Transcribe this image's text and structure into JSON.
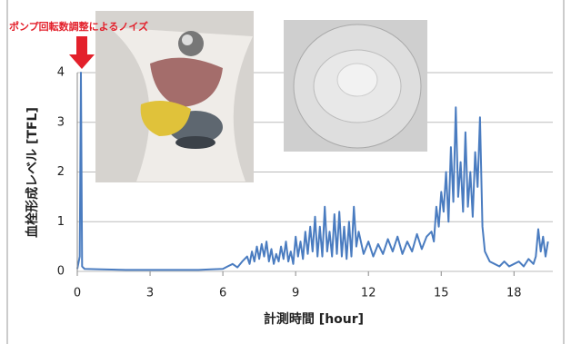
{
  "chart_data": {
    "type": "line",
    "annotation": "ポンプ回転数調整によるノイズ",
    "xlabel": "計測時間 [hour]",
    "ylabel": "血栓形成レベル [TFL]",
    "xlim": [
      0,
      19.6
    ],
    "xticks": [
      0,
      3,
      6,
      9,
      12,
      15,
      18
    ],
    "ylim": [
      0,
      4
    ],
    "yticks": [
      0,
      1,
      2,
      3,
      4
    ],
    "grid": true,
    "series": [
      {
        "color": "#4a7cc0",
        "x": [
          0,
          0.1,
          0.15,
          0.2,
          0.3,
          1,
          2,
          3,
          4,
          5,
          5.5,
          6,
          6.2,
          6.4,
          6.6,
          6.8,
          7.0,
          7.1,
          7.2,
          7.3,
          7.4,
          7.5,
          7.6,
          7.7,
          7.8,
          7.9,
          8.0,
          8.1,
          8.2,
          8.3,
          8.4,
          8.5,
          8.6,
          8.7,
          8.8,
          8.9,
          9.0,
          9.1,
          9.2,
          9.3,
          9.4,
          9.5,
          9.6,
          9.7,
          9.8,
          9.9,
          10.0,
          10.1,
          10.2,
          10.3,
          10.4,
          10.5,
          10.6,
          10.7,
          10.8,
          10.9,
          11.0,
          11.1,
          11.2,
          11.3,
          11.4,
          11.5,
          11.6,
          11.8,
          12,
          12.2,
          12.4,
          12.6,
          12.8,
          13,
          13.2,
          13.4,
          13.6,
          13.8,
          14,
          14.2,
          14.4,
          14.6,
          14.7,
          14.8,
          14.9,
          15.0,
          15.1,
          15.2,
          15.3,
          15.4,
          15.5,
          15.6,
          15.7,
          15.8,
          15.9,
          16.0,
          16.1,
          16.2,
          16.3,
          16.4,
          16.5,
          16.6,
          16.7,
          16.8,
          17,
          17.2,
          17.4,
          17.6,
          17.8,
          18,
          18.2,
          18.4,
          18.6,
          18.8,
          18.9,
          19,
          19.1,
          19.2,
          19.3,
          19.4
        ],
        "values": [
          0.05,
          0.3,
          4.0,
          0.1,
          0.05,
          0.04,
          0.03,
          0.03,
          0.03,
          0.03,
          0.04,
          0.05,
          0.1,
          0.15,
          0.08,
          0.2,
          0.3,
          0.15,
          0.4,
          0.2,
          0.5,
          0.25,
          0.55,
          0.3,
          0.6,
          0.2,
          0.45,
          0.15,
          0.35,
          0.2,
          0.5,
          0.25,
          0.6,
          0.2,
          0.4,
          0.15,
          0.7,
          0.3,
          0.6,
          0.25,
          0.8,
          0.35,
          0.9,
          0.4,
          1.1,
          0.3,
          0.9,
          0.3,
          1.3,
          0.4,
          0.8,
          0.3,
          1.15,
          0.35,
          1.2,
          0.3,
          0.9,
          0.25,
          1.0,
          0.3,
          1.3,
          0.5,
          0.8,
          0.35,
          0.6,
          0.3,
          0.55,
          0.35,
          0.65,
          0.4,
          0.7,
          0.35,
          0.6,
          0.4,
          0.75,
          0.45,
          0.7,
          0.8,
          0.6,
          1.3,
          0.9,
          1.6,
          1.2,
          2.0,
          1.0,
          2.5,
          1.4,
          3.3,
          1.5,
          2.2,
          1.2,
          2.8,
          1.3,
          2.0,
          1.1,
          2.4,
          1.7,
          3.1,
          0.9,
          0.4,
          0.2,
          0.15,
          0.1,
          0.2,
          0.1,
          0.15,
          0.2,
          0.1,
          0.25,
          0.15,
          0.3,
          0.85,
          0.4,
          0.7,
          0.3,
          0.6
        ]
      }
    ]
  }
}
